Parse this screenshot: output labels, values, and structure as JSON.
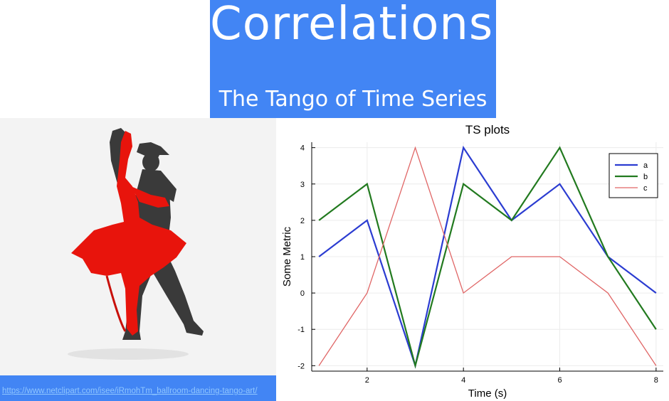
{
  "header": {
    "title": "Correlations:",
    "subtitle": "The Tango of Time Series"
  },
  "image": {
    "subject": "tango-dancers-silhouette",
    "credit_link": "https://www.netclipart.com/isee/iRmohTm_ballroom-dancing-tango-art/"
  },
  "colors": {
    "banner": "#4285f4",
    "series_a": "#2b3cd1",
    "series_b": "#227a1f",
    "series_c": "#e06666",
    "dancer_red": "#e8140c",
    "dancer_dark": "#3a3a3a"
  },
  "chart_data": {
    "type": "line",
    "title": "TS plots",
    "xlabel": "Time (s)",
    "ylabel": "Some Metric",
    "x": [
      1,
      2,
      3,
      4,
      5,
      6,
      7,
      8
    ],
    "xlim": [
      0.85,
      8.15
    ],
    "ylim": [
      -2.15,
      4.15
    ],
    "xticks": [
      2,
      4,
      6,
      8
    ],
    "yticks": [
      -2,
      -1,
      0,
      1,
      2,
      3,
      4
    ],
    "grid": true,
    "legend_position": "top-right",
    "series": [
      {
        "name": "a",
        "values": [
          1,
          2,
          -2,
          4,
          2,
          3,
          1,
          0
        ]
      },
      {
        "name": "b",
        "values": [
          2,
          3,
          -2,
          3,
          2,
          4,
          1,
          -1
        ]
      },
      {
        "name": "c",
        "values": [
          -2,
          0,
          4,
          0,
          1,
          1,
          0,
          -2
        ]
      }
    ]
  }
}
